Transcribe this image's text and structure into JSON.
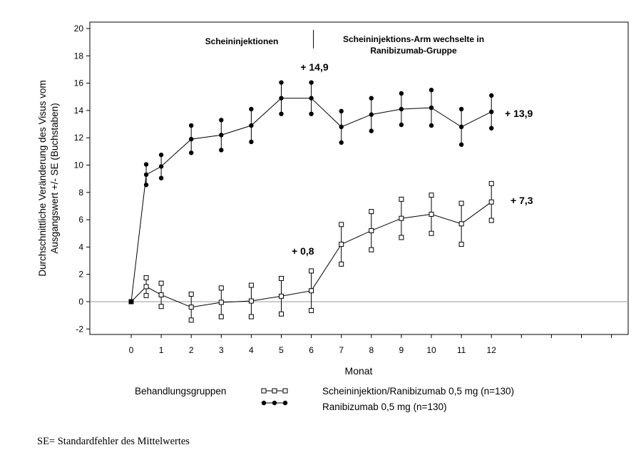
{
  "chart_data": {
    "type": "line",
    "x": [
      0,
      0.5,
      1,
      2,
      3,
      4,
      5,
      6,
      7,
      8,
      9,
      10,
      11,
      12
    ],
    "x_ticks": [
      "0",
      "1",
      "2",
      "3",
      "4",
      "5",
      "6",
      "7",
      "8",
      "9",
      "10",
      "11",
      "12"
    ],
    "ylim": [
      -2.5,
      20.5
    ],
    "y_ticks": [
      "20",
      "18",
      "16",
      "14",
      "12",
      "10",
      "8",
      "6",
      "4",
      "2",
      "0",
      "-2"
    ],
    "xlabel": "Monat",
    "ylabel_lines": [
      "Durchschnittliche Veränderung des Visus vom",
      "Ausgangswert +/- SE (Buchstaben)"
    ],
    "reference_line_y": 0,
    "series": [
      {
        "name": "Scheininjektion/Ranibizumab 0,5 mg (n=130)",
        "marker": "square",
        "values": [
          0,
          1.1,
          0.5,
          -0.4,
          -0.05,
          0.05,
          0.4,
          0.8,
          4.2,
          5.2,
          6.1,
          6.4,
          5.7,
          7.3
        ],
        "se": [
          0,
          0.65,
          0.85,
          0.95,
          1.05,
          1.15,
          1.3,
          1.45,
          1.45,
          1.4,
          1.4,
          1.4,
          1.5,
          1.35
        ]
      },
      {
        "name": "Ranibizumab 0,5 mg (n=130)",
        "marker": "circle",
        "values": [
          0,
          9.3,
          9.9,
          11.9,
          12.2,
          12.9,
          14.9,
          14.9,
          12.8,
          13.7,
          14.1,
          14.2,
          12.8,
          13.9
        ],
        "se": [
          0,
          0.75,
          0.85,
          1.0,
          1.1,
          1.2,
          1.15,
          1.15,
          1.15,
          1.2,
          1.15,
          1.3,
          1.3,
          1.2
        ]
      }
    ],
    "phase_labels": [
      "Scheininjektionen",
      "Scheininjektions-Arm wechselte in",
      "Ranibizumab-Gruppe"
    ],
    "annotations": [
      "+ 14,9",
      "+ 13,9",
      "+ 0,8",
      "+ 7,3"
    ],
    "legend_title": "Behandlungsgruppen",
    "legend_placement": "bottom",
    "grid": false
  },
  "footnote": "SE= Standardfehler des Mittelwertes"
}
